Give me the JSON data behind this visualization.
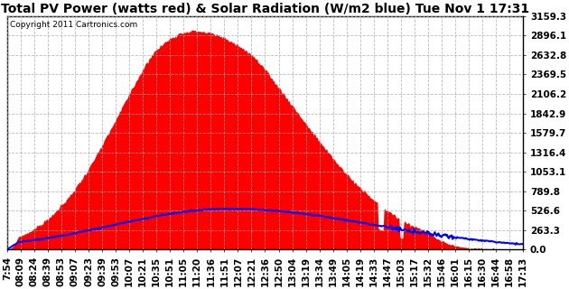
{
  "title": "Total PV Power (watts red) & Solar Radiation (W/m2 blue) Tue Nov 1 17:31",
  "copyright": "Copyright 2011 Cartronics.com",
  "yticks": [
    0.0,
    263.3,
    526.6,
    789.8,
    1053.1,
    1316.4,
    1579.7,
    1842.9,
    2106.2,
    2369.5,
    2632.8,
    2896.1,
    3159.3
  ],
  "ymax": 3159.3,
  "background_color": "#ffffff",
  "plot_bg_color": "#ffffff",
  "fill_color": "red",
  "line_color": "blue",
  "grid_color": "#aaaaaa",
  "xtick_labels": [
    "7:54",
    "08:09",
    "08:24",
    "08:39",
    "08:53",
    "09:07",
    "09:23",
    "09:39",
    "09:53",
    "10:07",
    "10:21",
    "10:35",
    "10:51",
    "11:05",
    "11:20",
    "11:36",
    "11:51",
    "12:07",
    "12:21",
    "12:36",
    "12:50",
    "13:04",
    "13:19",
    "13:34",
    "13:49",
    "14:05",
    "14:19",
    "14:33",
    "14:47",
    "15:03",
    "15:17",
    "15:32",
    "15:46",
    "16:01",
    "16:15",
    "16:30",
    "16:44",
    "16:58",
    "17:13"
  ],
  "n_points": 550,
  "pv_peak": 3100,
  "solar_peak": 550,
  "title_fontsize": 10,
  "tick_fontsize": 7.5,
  "copyright_fontsize": 6.5
}
